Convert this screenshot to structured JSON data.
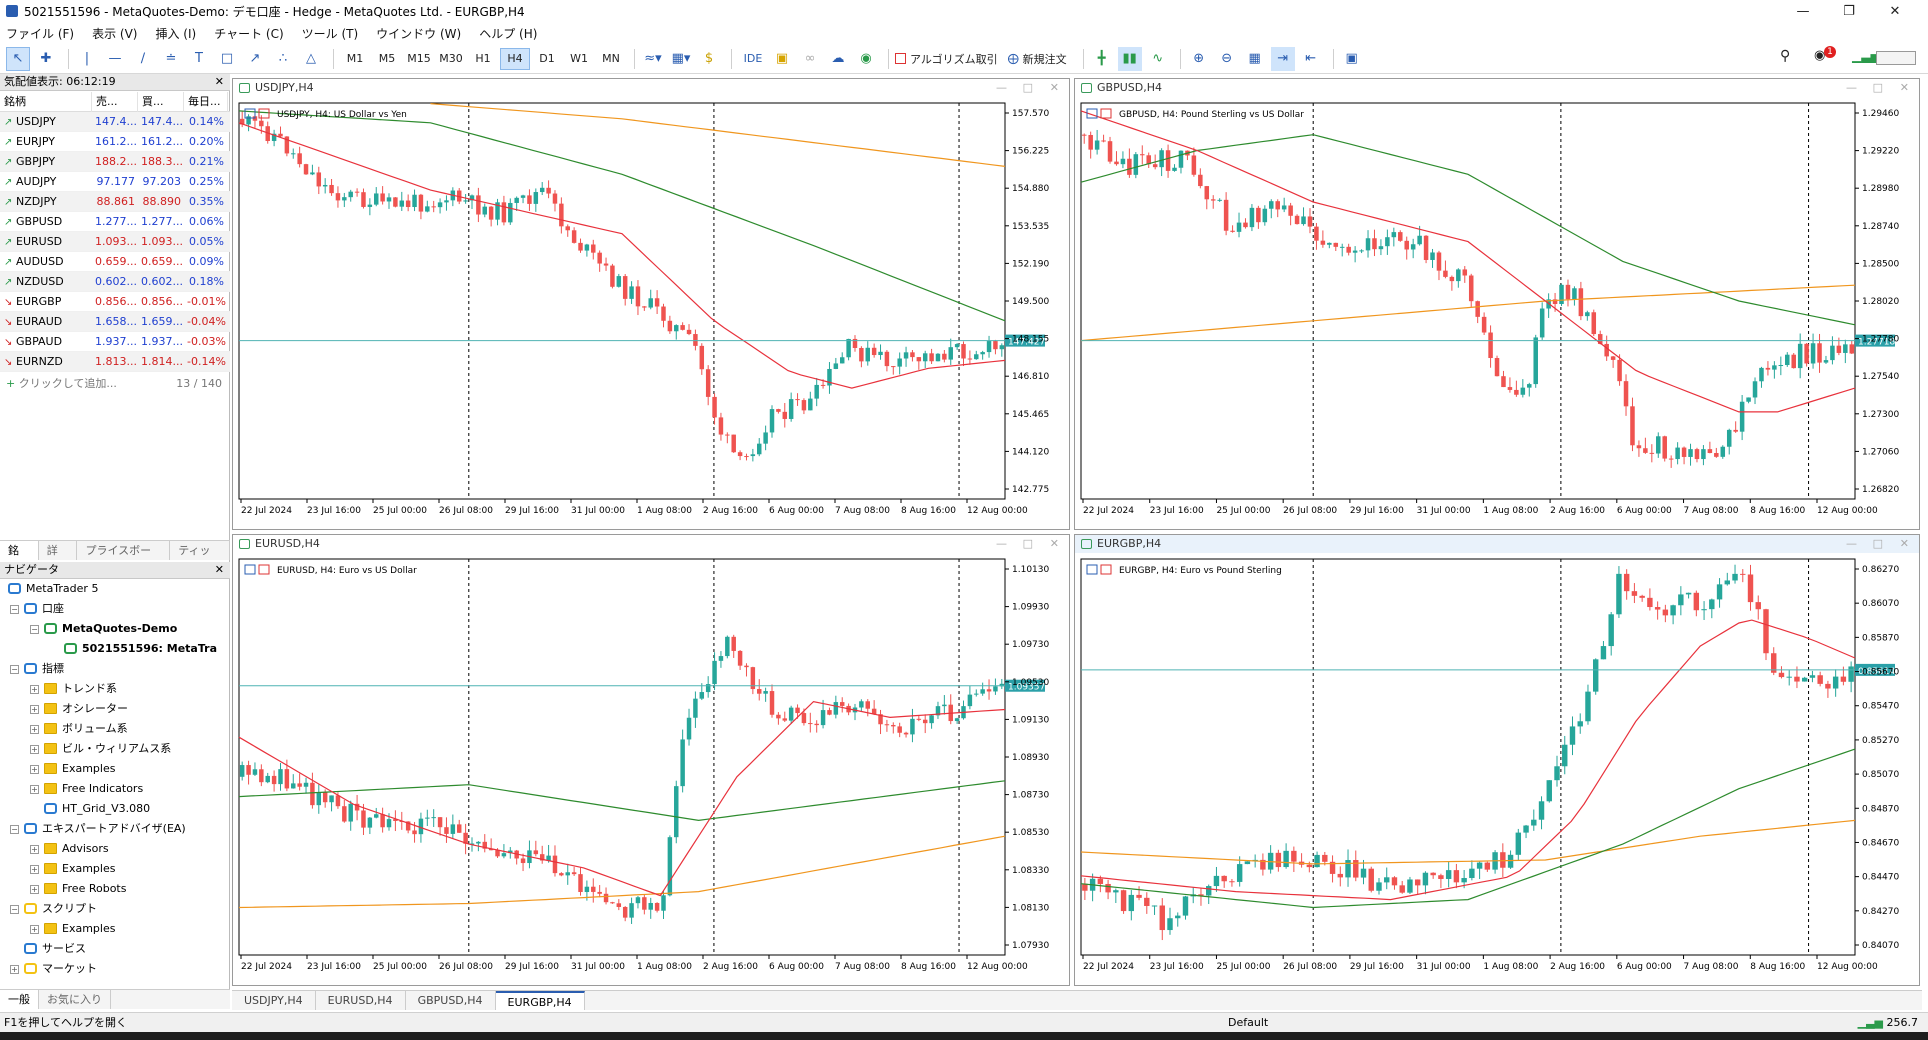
{
  "app": {
    "title": "5021551596 - MetaQuotes-Demo: デモ口座 - Hedge - MetaQuotes Ltd. - EURGBP,H4"
  },
  "menu": [
    "ファイル (F)",
    "表示 (V)",
    "挿入 (I)",
    "チャート (C)",
    "ツール (T)",
    "ウインドウ (W)",
    "ヘルプ (H)"
  ],
  "toolbar": {
    "timeframes": [
      "M1",
      "M5",
      "M15",
      "M30",
      "H1",
      "H4",
      "D1",
      "W1",
      "MN"
    ],
    "active_tf": "H4",
    "ide": "IDE",
    "algo": "アルゴリズム取引",
    "neworder": "新規注文",
    "notif": "1"
  },
  "market_watch": {
    "header": "気配値表示: 06:12:19",
    "columns": [
      "銘柄",
      "売...",
      "買...",
      "毎日..."
    ],
    "rows": [
      {
        "symbol": "USDJPY",
        "bid": "147.4...",
        "ask": "147.4...",
        "change": "0.14%",
        "dir": "up",
        "color": "#1f3fd0"
      },
      {
        "symbol": "EURJPY",
        "bid": "161.2...",
        "ask": "161.2...",
        "change": "0.20%",
        "dir": "up",
        "color": "#1f3fd0"
      },
      {
        "symbol": "GBPJPY",
        "bid": "188.2...",
        "ask": "188.3...",
        "change": "0.21%",
        "dir": "up",
        "color": "#d02020"
      },
      {
        "symbol": "AUDJPY",
        "bid": "97.177",
        "ask": "97.203",
        "change": "0.25%",
        "dir": "up",
        "color": "#1f3fd0"
      },
      {
        "symbol": "NZDJPY",
        "bid": "88.861",
        "ask": "88.890",
        "change": "0.35%",
        "dir": "up",
        "color": "#d02020"
      },
      {
        "symbol": "GBPUSD",
        "bid": "1.277...",
        "ask": "1.277...",
        "change": "0.06%",
        "dir": "up",
        "color": "#1f3fd0"
      },
      {
        "symbol": "EURUSD",
        "bid": "1.093...",
        "ask": "1.093...",
        "change": "0.05%",
        "dir": "up",
        "color": "#d02020"
      },
      {
        "symbol": "AUDUSD",
        "bid": "0.659...",
        "ask": "0.659...",
        "change": "0.09%",
        "dir": "up",
        "color": "#d02020"
      },
      {
        "symbol": "NZDUSD",
        "bid": "0.602...",
        "ask": "0.602...",
        "change": "0.18%",
        "dir": "up",
        "color": "#1f3fd0"
      },
      {
        "symbol": "EURGBP",
        "bid": "0.856...",
        "ask": "0.856...",
        "change": "-0.01%",
        "dir": "down",
        "color": "#d02020"
      },
      {
        "symbol": "EURAUD",
        "bid": "1.658...",
        "ask": "1.659...",
        "change": "-0.04%",
        "dir": "down",
        "color": "#1f3fd0"
      },
      {
        "symbol": "GBPAUD",
        "bid": "1.937...",
        "ask": "1.937...",
        "change": "-0.03%",
        "dir": "down",
        "color": "#1f3fd0"
      },
      {
        "symbol": "EURNZD",
        "bid": "1.813...",
        "ask": "1.814...",
        "change": "-0.14%",
        "dir": "down",
        "color": "#d02020"
      }
    ],
    "add_label": "クリックして追加...",
    "count": "13 / 140",
    "tabs": [
      "銘柄",
      "詳細",
      "プライスボード",
      "ティック"
    ]
  },
  "navigator": {
    "header": "ナビゲータ",
    "tabs": [
      "一般",
      "お気に入り"
    ],
    "items": [
      {
        "label": "MetaTrader 5",
        "lvl": 0,
        "exp": "",
        "icon": "mt5",
        "bold": false
      },
      {
        "label": "口座",
        "lvl": 1,
        "exp": "-",
        "icon": "accounts",
        "bold": false
      },
      {
        "label": "MetaQuotes-Demo",
        "lvl": 2,
        "exp": "-",
        "icon": "server",
        "bold": true
      },
      {
        "label": "5021551596: MetaTra",
        "lvl": 3,
        "exp": "",
        "icon": "user",
        "bold": true
      },
      {
        "label": "指標",
        "lvl": 1,
        "exp": "-",
        "icon": "indicators",
        "bold": false
      },
      {
        "label": "トレンド系",
        "lvl": 2,
        "exp": "+",
        "icon": "folder",
        "bold": false
      },
      {
        "label": "オシレーター",
        "lvl": 2,
        "exp": "+",
        "icon": "folder",
        "bold": false
      },
      {
        "label": "ボリューム系",
        "lvl": 2,
        "exp": "+",
        "icon": "folder",
        "bold": false
      },
      {
        "label": "ビル・ウィリアムス系",
        "lvl": 2,
        "exp": "+",
        "icon": "folder",
        "bold": false
      },
      {
        "label": "Examples",
        "lvl": 2,
        "exp": "+",
        "icon": "folder",
        "bold": false
      },
      {
        "label": "Free Indicators",
        "lvl": 2,
        "exp": "+",
        "icon": "folder",
        "bold": false
      },
      {
        "label": "HT_Grid_V3.080",
        "lvl": 2,
        "exp": "",
        "icon": "indicator",
        "bold": false
      },
      {
        "label": "エキスパートアドバイザ(EA)",
        "lvl": 1,
        "exp": "-",
        "icon": "experts",
        "bold": false
      },
      {
        "label": "Advisors",
        "lvl": 2,
        "exp": "+",
        "icon": "folder",
        "bold": false
      },
      {
        "label": "Examples",
        "lvl": 2,
        "exp": "+",
        "icon": "folder",
        "bold": false
      },
      {
        "label": "Free Robots",
        "lvl": 2,
        "exp": "+",
        "icon": "folder",
        "bold": false
      },
      {
        "label": "スクリプト",
        "lvl": 1,
        "exp": "-",
        "icon": "scripts",
        "bold": false
      },
      {
        "label": "Examples",
        "lvl": 2,
        "exp": "+",
        "icon": "folder",
        "bold": false
      },
      {
        "label": "サービス",
        "lvl": 1,
        "exp": "",
        "icon": "services",
        "bold": false
      },
      {
        "label": "マーケット",
        "lvl": 1,
        "exp": "+",
        "icon": "market",
        "bold": false
      }
    ]
  },
  "charts": [
    {
      "title": "USDJPY,H4",
      "legend": "USDJPY, H4:  US Dollar vs Yen",
      "active": false,
      "yticks": [
        "157.570",
        "156.225",
        "154.880",
        "153.535",
        "152.190",
        "149.500",
        "148.155",
        "146.810",
        "145.465",
        "144.120",
        "142.775"
      ],
      "price": "147.427",
      "dates": [
        "22 Jul 2024",
        "23 Jul 16:00",
        "25 Jul 00:00",
        "26 Jul 08:00",
        "29 Jul 16:00",
        "31 Jul 00:00",
        "1 Aug 08:00",
        "2 Aug 16:00",
        "6 Aug 00:00",
        "7 Aug 08:00",
        "8 Aug 16:00",
        "12 Aug 00:00"
      ]
    },
    {
      "title": "GBPUSD,H4",
      "legend": "GBPUSD, H4:  Pound Sterling vs US Dollar",
      "active": false,
      "yticks": [
        "1.29460",
        "1.29220",
        "1.28980",
        "1.28740",
        "1.28500",
        "1.28020",
        "1.27780",
        "1.27540",
        "1.27300",
        "1.27060",
        "1.26820"
      ],
      "price": "1.27718",
      "dates": [
        "22 Jul 2024",
        "23 Jul 16:00",
        "25 Jul 00:00",
        "26 Jul 08:00",
        "29 Jul 16:00",
        "31 Jul 00:00",
        "1 Aug 08:00",
        "2 Aug 16:00",
        "6 Aug 00:00",
        "7 Aug 08:00",
        "8 Aug 16:00",
        "12 Aug 00:00"
      ]
    },
    {
      "title": "EURUSD,H4",
      "legend": "EURUSD, H4:  Euro vs US Dollar",
      "active": false,
      "yticks": [
        "1.10130",
        "1.09930",
        "1.09730",
        "1.09530",
        "1.09130",
        "1.08930",
        "1.08730",
        "1.08530",
        "1.08330",
        "1.08130",
        "1.07930"
      ],
      "price": "1.09357",
      "dates": [
        "22 Jul 2024",
        "23 Jul 16:00",
        "25 Jul 00:00",
        "26 Jul 08:00",
        "29 Jul 16:00",
        "31 Jul 00:00",
        "1 Aug 08:00",
        "2 Aug 16:00",
        "6 Aug 00:00",
        "7 Aug 08:00",
        "8 Aug 16:00",
        "12 Aug 00:00"
      ]
    },
    {
      "title": "EURGBP,H4",
      "legend": "EURGBP, H4:  Euro vs Pound Sterling",
      "active": true,
      "yticks": [
        "0.86270",
        "0.86070",
        "0.85870",
        "0.85670",
        "0.85470",
        "0.85270",
        "0.85070",
        "0.84870",
        "0.84670",
        "0.84470",
        "0.84270",
        "0.84070"
      ],
      "price": "0.85614",
      "dates": [
        "22 Jul 2024",
        "23 Jul 16:00",
        "25 Jul 00:00",
        "26 Jul 08:00",
        "29 Jul 16:00",
        "31 Jul 00:00",
        "1 Aug 08:00",
        "2 Aug 16:00",
        "6 Aug 00:00",
        "7 Aug 08:00",
        "8 Aug 16:00",
        "12 Aug 00:00"
      ]
    }
  ],
  "bottom_tabs": [
    "USDJPY,H4",
    "EURUSD,H4",
    "GBPUSD,H4",
    "EURGBP,H4"
  ],
  "active_tab": "EURGBP,H4",
  "status": {
    "help": "F1を押してヘルプを開く",
    "profile": "Default",
    "ping": "256.7"
  },
  "colors": {
    "bull": "#26a69a",
    "bear": "#ef5350",
    "ma_fast": "#e8323c",
    "ma_mid": "#2e8b2e",
    "ma_slow": "#f0961e",
    "price_line": "#4fb3b3",
    "price_tag": "#2aa0a8"
  }
}
